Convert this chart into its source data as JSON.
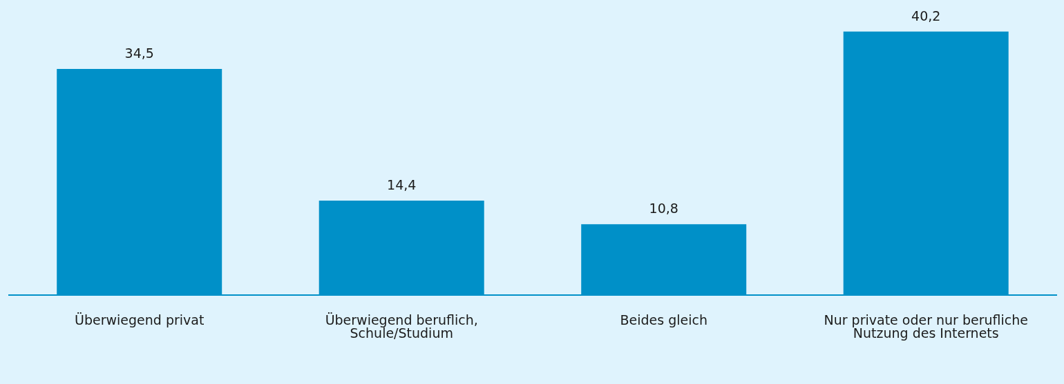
{
  "chart_data": {
    "type": "bar",
    "categories": [
      "Überwiegend privat",
      "Überwiegend beruflich, Schule/Studium",
      "Beides gleich",
      "Nur private oder nur berufliche Nutzung des Internets"
    ],
    "values": [
      34.5,
      14.4,
      10.8,
      40.2
    ],
    "value_labels": [
      "34,5",
      "14,4",
      "10,8",
      "40,2"
    ],
    "color": "#0090c8",
    "grid": false,
    "legend": false
  }
}
